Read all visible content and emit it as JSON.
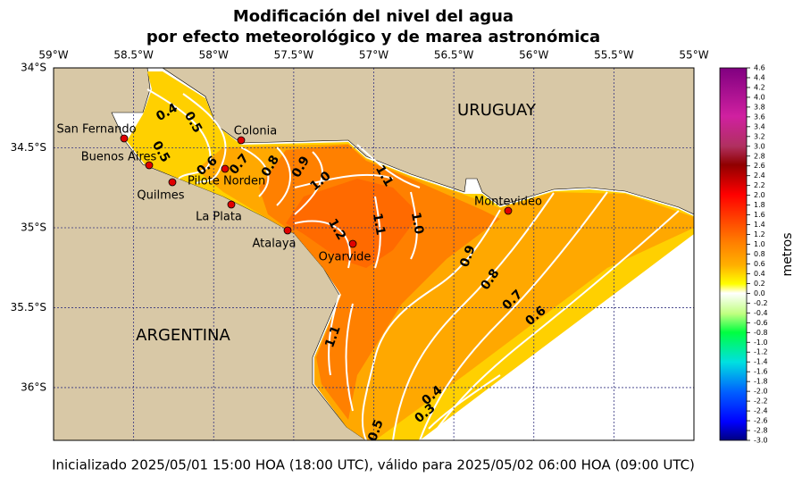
{
  "map": {
    "title": [
      "Modificación del nivel del agua",
      "por efecto meteorológico y de marea astronómica"
    ],
    "xlim": [
      -59,
      -55
    ],
    "ylim": [
      -36.33,
      -34
    ],
    "xticks": [
      {
        "value": -59,
        "label": "59°W"
      },
      {
        "value": -58.5,
        "label": "58.5°W"
      },
      {
        "value": -58,
        "label": "58°W"
      },
      {
        "value": -57.5,
        "label": "57.5°W"
      },
      {
        "value": -57,
        "label": "57°W"
      },
      {
        "value": -56.5,
        "label": "56.5°W"
      },
      {
        "value": -56,
        "label": "56°W"
      },
      {
        "value": -55.5,
        "label": "55.5°W"
      },
      {
        "value": -55,
        "label": "55°W"
      }
    ],
    "yticks": [
      {
        "value": -34,
        "label": "34°S"
      },
      {
        "value": -34.5,
        "label": "34.5°S"
      },
      {
        "value": -35,
        "label": "35°S"
      },
      {
        "value": -35.5,
        "label": "35.5°S"
      },
      {
        "value": -36,
        "label": "36°S"
      }
    ],
    "grid": true,
    "countries": [
      "URUGUAY",
      "ARGENTINA"
    ],
    "places": [
      "San Fernando",
      "Buenos Aires",
      "Quilmes",
      "Pilote Norden",
      "Colonia",
      "La Plata",
      "Atalaya",
      "Oyarvide",
      "Montevideo"
    ],
    "contour_labels": [
      "0.4",
      "0.5",
      "0.5",
      "0.6",
      "0.7",
      "0.8",
      "0.9",
      "1.0",
      "1.1",
      "1.2",
      "1.1",
      "1.0",
      "0.9",
      "0.8",
      "0.7",
      "0.6",
      "1.1",
      "0.4",
      "0.3",
      "0.5"
    ],
    "colorbar": {
      "label": "metros",
      "lim": [
        -3.0,
        4.6
      ],
      "ticks": [
        4.6,
        4.4,
        4.2,
        {
          "value": 4,
          "label": "4.0"
        },
        3.8,
        3.6,
        3.4,
        3.2,
        {
          "value": 3,
          "label": "3.0"
        },
        2.8,
        2.6,
        2.4,
        2.2,
        {
          "value": 2,
          "label": "2.0"
        },
        1.8,
        1.6,
        1.4,
        1.2,
        {
          "value": 1,
          "label": "1.0"
        },
        0.8,
        0.6,
        0.4,
        0.2,
        {
          "value": 0,
          "label": "0.0"
        },
        -0.2,
        -0.4,
        -0.6,
        -0.8,
        {
          "value": -1,
          "label": "-1.0"
        },
        -1.2,
        -1.4,
        -1.6,
        -1.8,
        {
          "value": -2,
          "label": "-2.0"
        },
        -2.2,
        -2.4,
        -2.6,
        -2.8,
        {
          "value": -3,
          "label": "-3.0"
        }
      ]
    }
  },
  "footer": "Inicializado 2025/05/01 15:00 HOA (18:00 UTC), válido para 2025/05/02 06:00 HOA (09:00 UTC)"
}
